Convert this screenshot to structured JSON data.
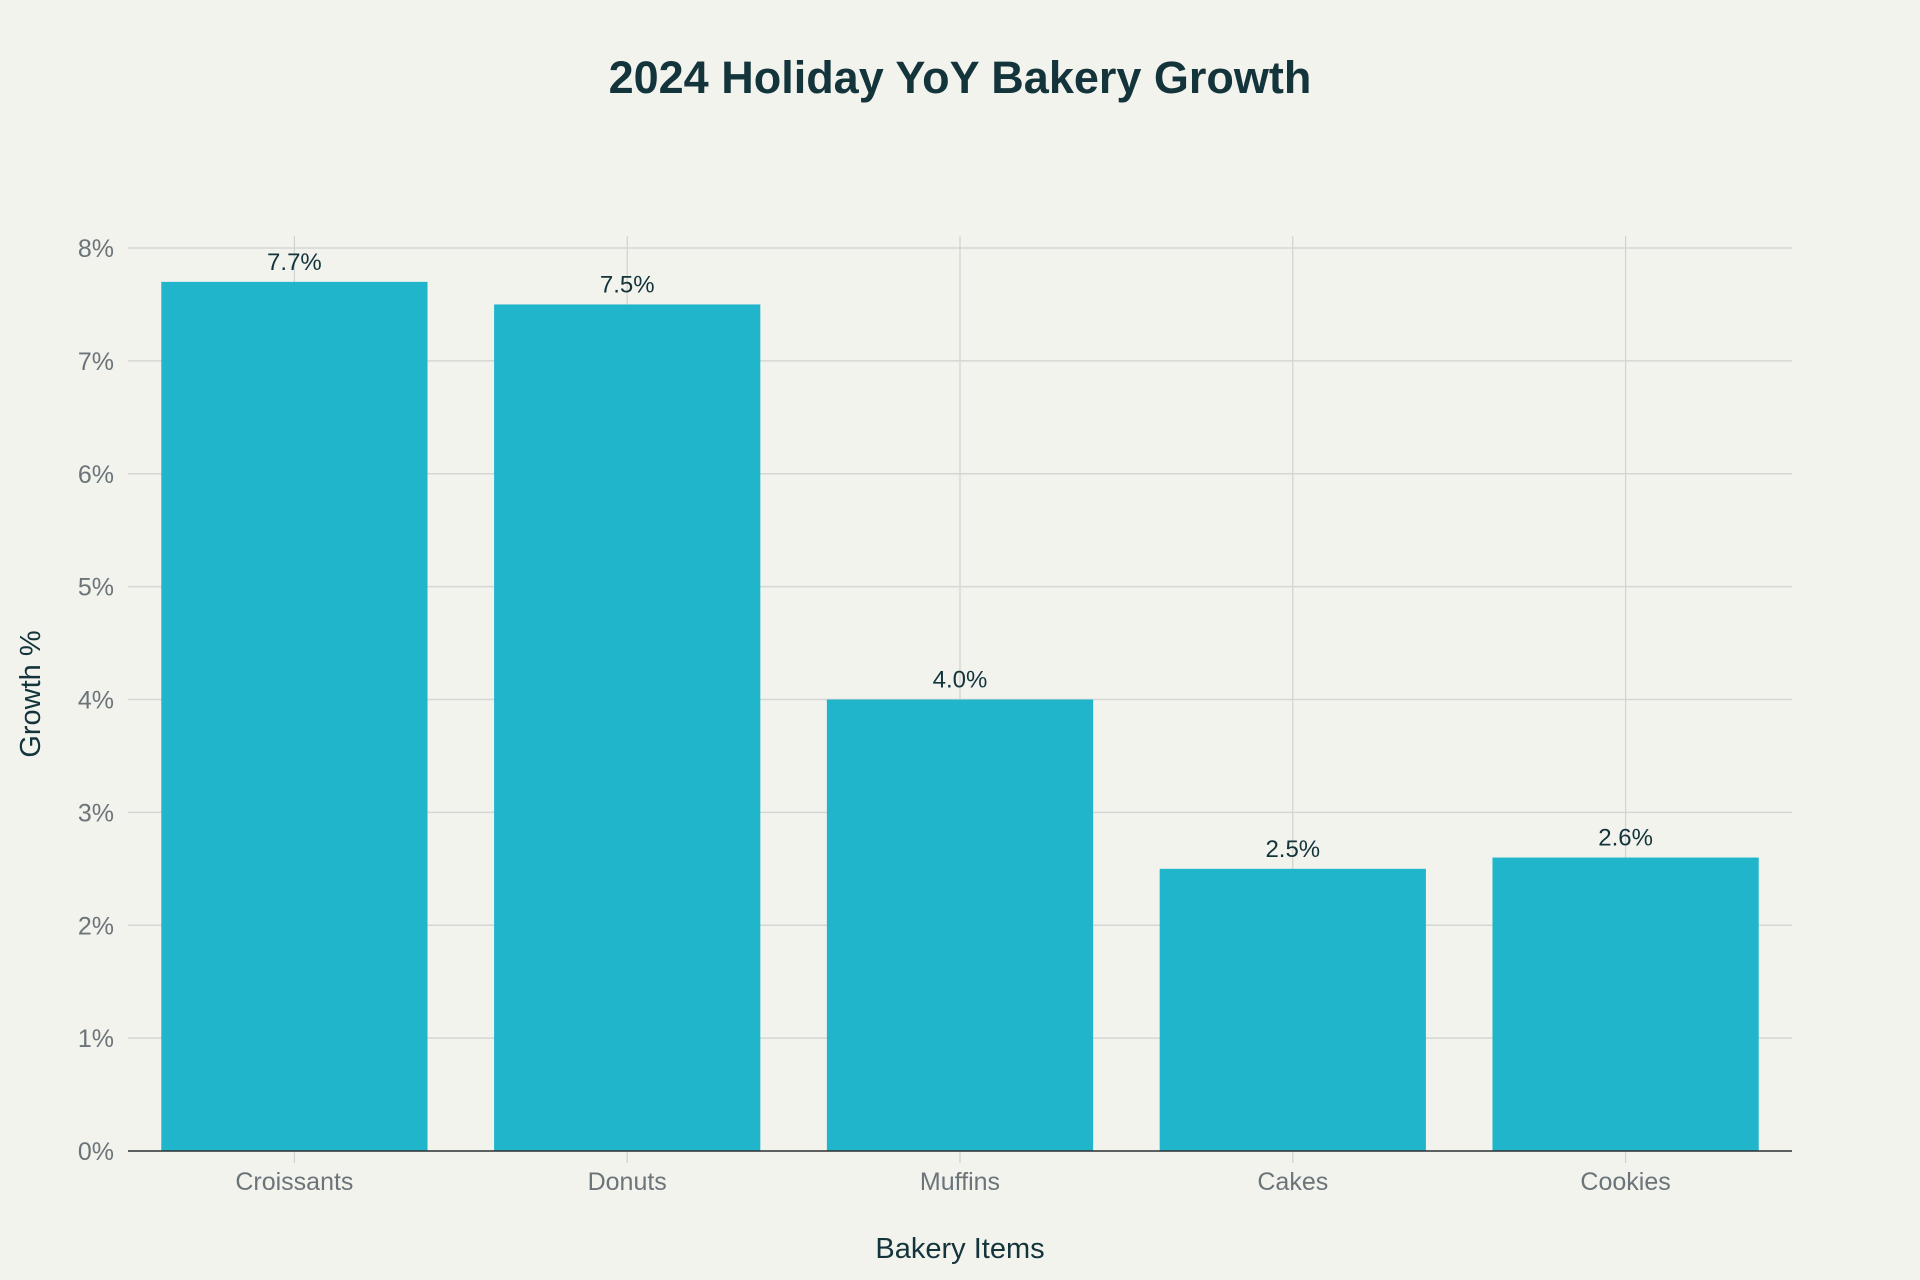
{
  "chart_data": {
    "type": "bar",
    "title": "2024 Holiday YoY Bakery Growth",
    "xlabel": "Bakery Items",
    "ylabel": "Growth %",
    "categories": [
      "Croissants",
      "Donuts",
      "Muffins",
      "Cakes",
      "Cookies"
    ],
    "values": [
      7.7,
      7.5,
      4.0,
      2.5,
      2.6
    ],
    "data_labels": [
      "7.7%",
      "7.5%",
      "4.0%",
      "2.5%",
      "2.6%"
    ],
    "ylim": [
      0,
      8
    ],
    "yticks": [
      0,
      1,
      2,
      3,
      4,
      5,
      6,
      7,
      8
    ],
    "ytick_labels": [
      "0%",
      "1%",
      "2%",
      "3%",
      "4%",
      "5%",
      "6%",
      "7%",
      "8%"
    ],
    "grid": true,
    "legend": "none",
    "colors": {
      "bar": "#21b5cb",
      "background": "#f3f3ee"
    }
  }
}
